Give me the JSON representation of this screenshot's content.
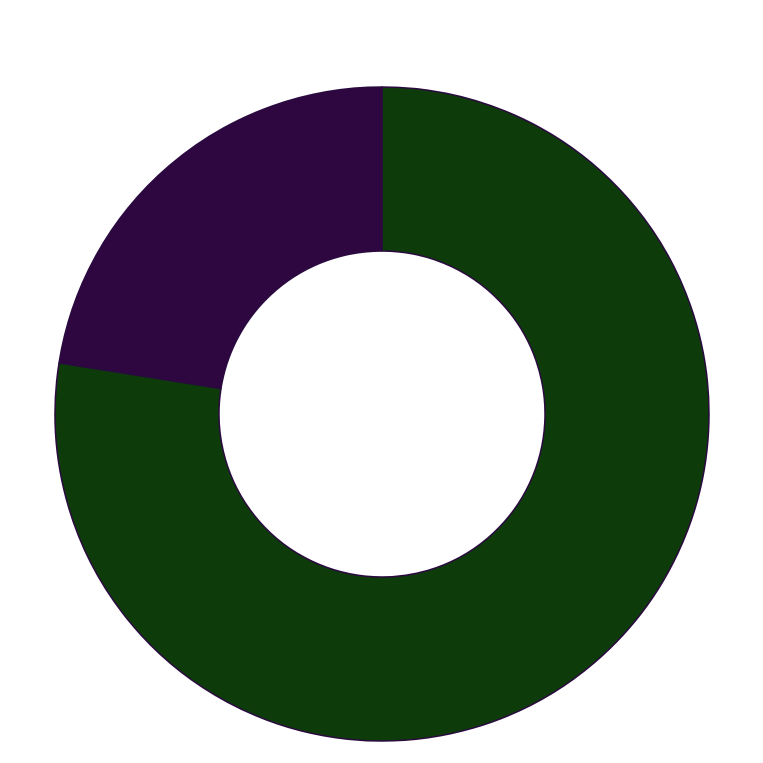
{
  "chart_data": {
    "type": "pie",
    "subtype": "donut",
    "start_angle": "top",
    "direction": "clockwise",
    "legend": "none",
    "slices": [
      {
        "value": 77.5,
        "color": "#0d3b0a"
      },
      {
        "value": 22.5,
        "color": "#2e0640"
      }
    ]
  }
}
